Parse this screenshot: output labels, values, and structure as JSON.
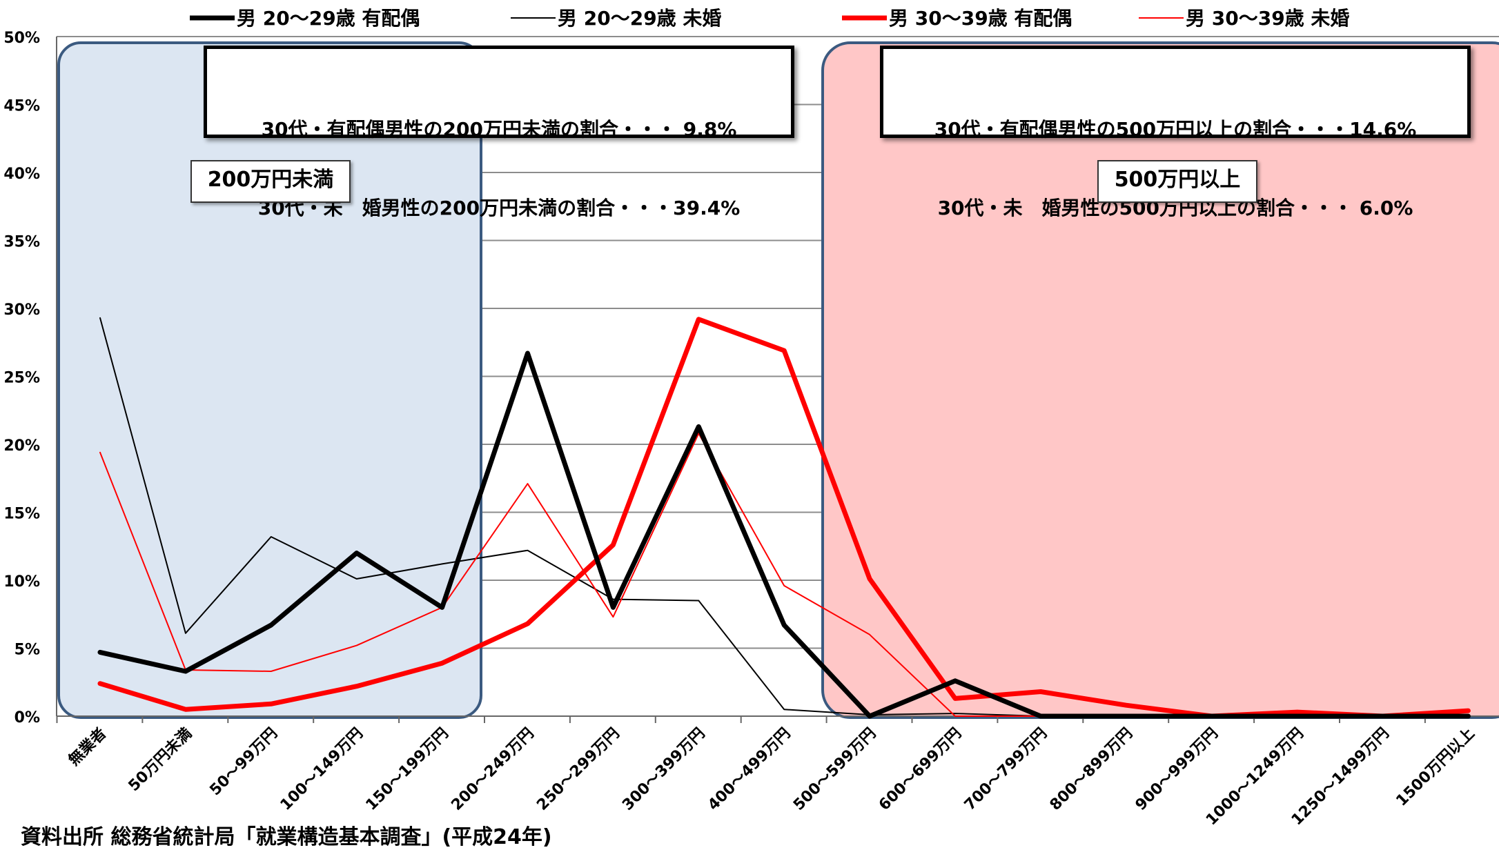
{
  "chart_data": {
    "type": "line",
    "categories": [
      "無業者",
      "50万円未満",
      "50～99万円",
      "100～149万円",
      "150～199万円",
      "200～249万円",
      "250～299万円",
      "300～399万円",
      "400～499万円",
      "500～599万円",
      "600～699万円",
      "700～799万円",
      "800～899万円",
      "900～999万円",
      "1000～1249万円",
      "1250～1499万円",
      "1500万円以上"
    ],
    "series": [
      {
        "name": "男 20～29歳 有配偶",
        "color": "#000000",
        "width": 7,
        "values": [
          4.7,
          3.3,
          6.7,
          12.0,
          8.0,
          26.7,
          8.0,
          21.3,
          6.7,
          0.0,
          2.6,
          0.0,
          0.0,
          0.0,
          0.0,
          0.0,
          0.0
        ]
      },
      {
        "name": "男 20～29歳 未婚",
        "color": "#000000",
        "width": 2,
        "values": [
          29.3,
          6.1,
          13.2,
          10.1,
          11.2,
          12.2,
          8.6,
          8.5,
          0.5,
          0.1,
          0.2,
          0.0,
          0.0,
          0.0,
          0.0,
          0.0,
          0.0
        ]
      },
      {
        "name": "男 30～39歳 有配偶",
        "color": "#ff0000",
        "width": 7,
        "values": [
          2.4,
          0.5,
          0.9,
          2.2,
          3.9,
          6.8,
          12.6,
          29.2,
          26.9,
          10.1,
          1.3,
          1.8,
          0.8,
          0.0,
          0.3,
          0.0,
          0.4
        ]
      },
      {
        "name": "男 30～39歳 未婚",
        "color": "#ff0000",
        "width": 2,
        "values": [
          19.4,
          3.4,
          3.3,
          5.2,
          8.0,
          17.1,
          7.3,
          20.8,
          9.6,
          6.0,
          0.0,
          0.0,
          0.0,
          0.0,
          0.0,
          0.0,
          0.0
        ]
      }
    ],
    "y_ticks": [
      "0%",
      "5%",
      "10%",
      "15%",
      "20%",
      "25%",
      "30%",
      "35%",
      "40%",
      "45%",
      "50%"
    ],
    "ylim": [
      0,
      50
    ],
    "grid": true,
    "legend_position": "top",
    "annotations": {
      "callout_left": [
        "30代・有配偶男性の200万円未満の割合・・・ 9.8%",
        "30代・未　婚男性の200万円未満の割合・・・39.4%"
      ],
      "callout_right": [
        "30代・有配偶男性の500万円以上の割合・・・14.6%",
        "30代・未　婚男性の500万円以上の割合・・・ 6.0%"
      ],
      "tag_left": "200万円未満",
      "tag_right": "500万円以上",
      "region_left_color": "#dce6f2",
      "region_right_color": "#ffc7c7",
      "region_border_color": "#3b5a80"
    },
    "source": "資料出所 総務省統計局「就業構造基本調査」(平成24年)"
  }
}
